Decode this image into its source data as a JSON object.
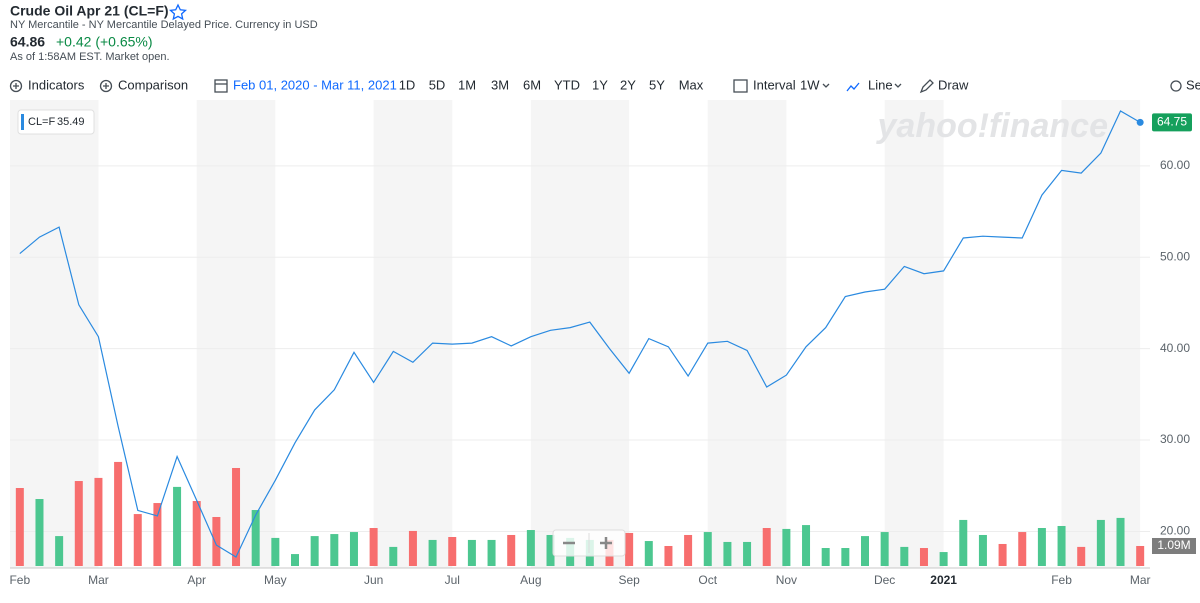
{
  "header": {
    "title": "Crude Oil Apr 21 (CL=F)",
    "exchange": "NY Mercantile - NY Mercantile Delayed Price. Currency in USD",
    "price": 64.86,
    "change": "+0.42 (+0.65%)",
    "as_of": "As of 1:58AM EST. Market open."
  },
  "toolbar": {
    "indicators": "Indicators",
    "comparison": "Comparison",
    "date_range": "Feb 01, 2020 - Mar 11, 2021",
    "ranges": [
      "1D",
      "5D",
      "1M",
      "3M",
      "6M",
      "YTD",
      "1Y",
      "2Y",
      "5Y",
      "Max"
    ],
    "interval_label": "Interval",
    "interval": "1W",
    "chart_type": "Line",
    "draw": "Draw",
    "settings": "Se"
  },
  "chart_data": {
    "type": "line",
    "watermark": "yahoo!finance",
    "grid": true,
    "categories": [
      "Feb",
      null,
      null,
      null,
      "Mar",
      null,
      null,
      null,
      null,
      "Apr",
      null,
      null,
      null,
      "May",
      null,
      null,
      null,
      null,
      "Jun",
      null,
      null,
      null,
      "Jul",
      null,
      null,
      null,
      "Aug",
      null,
      null,
      null,
      null,
      "Sep",
      null,
      null,
      null,
      "Oct",
      null,
      null,
      null,
      "Nov",
      null,
      null,
      null,
      null,
      "Dec",
      null,
      null,
      "2021",
      null,
      null,
      null,
      null,
      null,
      "Feb",
      null,
      null,
      null,
      "Mar"
    ],
    "series": [
      {
        "name": "CL=F",
        "color": "#2a8ae0",
        "values": [
          50.4,
          52.2,
          53.3,
          44.8,
          41.3,
          31.5,
          22.3,
          21.7,
          28.2,
          23.4,
          18.5,
          17.2,
          21.8,
          25.6,
          29.7,
          33.3,
          35.5,
          39.6,
          36.3,
          39.7,
          38.5,
          40.6,
          40.5,
          40.6,
          41.3,
          40.3,
          41.3,
          42.0,
          42.3,
          42.9,
          40.0,
          37.3,
          41.1,
          40.2,
          37.0,
          40.6,
          40.8,
          39.8,
          35.8,
          37.1,
          40.2,
          42.3,
          45.7,
          46.2,
          46.5,
          49.0,
          48.2,
          48.5,
          52.1,
          52.3,
          52.2,
          52.1,
          56.8,
          59.5,
          59.2,
          61.4,
          66.0,
          64.75
        ]
      }
    ],
    "ylim": [
      16,
      67.2
    ],
    "yticks": [
      {
        "value": 20,
        "label": "20.00"
      },
      {
        "value": 30,
        "label": "30.00"
      },
      {
        "value": 40,
        "label": "40.00"
      },
      {
        "value": 50,
        "label": "50.00"
      },
      {
        "value": 60,
        "label": "60.00"
      }
    ],
    "volume": {
      "up_color": "#4cc790",
      "down_color": "#f76e6e",
      "ylim": [
        0,
        25.5
      ],
      "values": [
        4.25,
        3.65,
        1.63,
        4.63,
        4.8,
        5.67,
        2.83,
        3.43,
        4.31,
        3.54,
        2.67,
        5.34,
        3.05,
        1.53,
        0.65,
        1.63,
        1.74,
        1.85,
        2.07,
        1.04,
        1.91,
        1.42,
        1.58,
        1.42,
        1.42,
        1.69,
        1.96,
        1.69,
        1.53,
        1.42,
        1.42,
        1.8,
        1.36,
        1.09,
        1.69,
        1.85,
        1.31,
        1.31,
        2.07,
        2.02,
        2.23,
        0.98,
        0.98,
        1.63,
        1.85,
        1.04,
        0.98,
        0.76,
        2.51,
        1.69,
        1.2,
        1.85,
        2.07,
        2.18,
        1.04,
        2.51,
        2.62,
        1.09
      ],
      "up": [
        false,
        true,
        true,
        false,
        false,
        false,
        false,
        false,
        true,
        false,
        false,
        false,
        true,
        true,
        true,
        true,
        true,
        true,
        false,
        true,
        false,
        true,
        false,
        true,
        true,
        false,
        true,
        true,
        true,
        true,
        false,
        false,
        true,
        false,
        false,
        true,
        true,
        true,
        false,
        true,
        true,
        true,
        true,
        true,
        true,
        true,
        false,
        true,
        true,
        true,
        false,
        false,
        true,
        true,
        false,
        true,
        true,
        false
      ],
      "value_labels": [
        null,
        null,
        null,
        null,
        null,
        null,
        null,
        null,
        null,
        null,
        null,
        null,
        null,
        null,
        null,
        null,
        null,
        null,
        null,
        null,
        null,
        null,
        null,
        null,
        null,
        null,
        null,
        null,
        null,
        null,
        null,
        null,
        null,
        null,
        null,
        null,
        null,
        null,
        null,
        null,
        null,
        null,
        null,
        null,
        null,
        null,
        null,
        null,
        null,
        null,
        null,
        null,
        null,
        null,
        null,
        null,
        null,
        "1.09M"
      ]
    },
    "tooltip": {
      "symbol": "CL=F",
      "value": 35.49
    }
  }
}
